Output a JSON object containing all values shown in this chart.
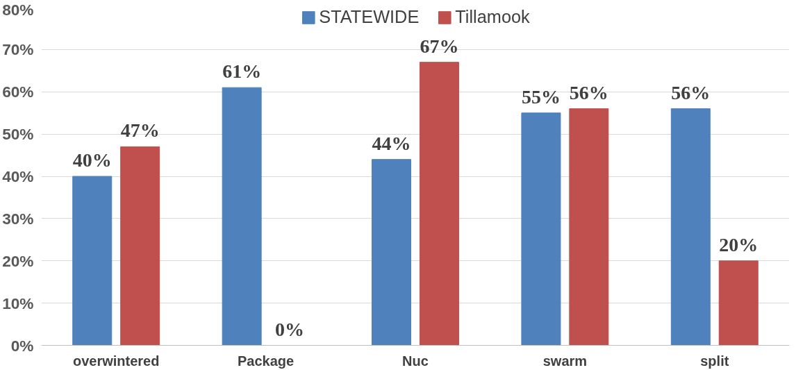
{
  "chart_data": {
    "type": "bar",
    "categories": [
      "overwintered",
      "Package",
      "Nuc",
      "swarm",
      "split"
    ],
    "series": [
      {
        "name": "STATEWIDE",
        "color": "#4f81bd",
        "values": [
          40,
          61,
          44,
          55,
          56
        ],
        "value_labels": [
          "40%",
          "61%",
          "44%",
          "55%",
          "56%"
        ]
      },
      {
        "name": "Tillamook",
        "color": "#c0504d",
        "values": [
          47,
          0,
          67,
          56,
          20
        ],
        "value_labels": [
          "47%",
          "0%",
          "67%",
          "56%",
          "20%"
        ]
      }
    ],
    "ylim": [
      0,
      80
    ],
    "yticks": [
      {
        "value": 0,
        "label": "0%"
      },
      {
        "value": 10,
        "label": "10%"
      },
      {
        "value": 20,
        "label": "20%"
      },
      {
        "value": 30,
        "label": "30%"
      },
      {
        "value": 40,
        "label": "40%"
      },
      {
        "value": 50,
        "label": "50%"
      },
      {
        "value": 60,
        "label": "60%"
      },
      {
        "value": 70,
        "label": "70%"
      },
      {
        "value": 80,
        "label": "80%"
      }
    ],
    "grid": "y",
    "legend": "top"
  }
}
